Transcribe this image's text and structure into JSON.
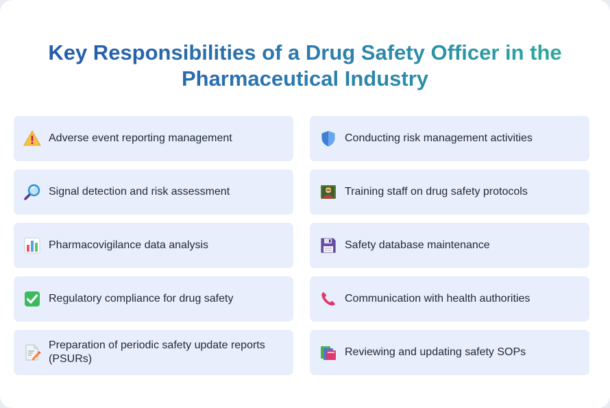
{
  "title": "Key Responsibilities of a Drug Safety Officer in the Pharmaceutical Industry",
  "items": [
    {
      "label": "Adverse event reporting management",
      "icon": "warning-icon"
    },
    {
      "label": "Conducting risk management activities",
      "icon": "shield-icon"
    },
    {
      "label": "Signal detection and risk assessment",
      "icon": "magnifier-icon"
    },
    {
      "label": "Training staff on drug safety protocols",
      "icon": "teacher-icon"
    },
    {
      "label": "Pharmacovigilance data analysis",
      "icon": "bar-chart-icon"
    },
    {
      "label": "Safety database maintenance",
      "icon": "floppy-disk-icon"
    },
    {
      "label": "Regulatory compliance for drug safety",
      "icon": "check-mark-icon"
    },
    {
      "label": "Communication with health authorities",
      "icon": "phone-icon"
    },
    {
      "label": "Preparation of periodic safety update reports (PSURs)",
      "icon": "memo-icon"
    },
    {
      "label": "Reviewing and updating safety SOPs",
      "icon": "books-icon"
    }
  ]
}
